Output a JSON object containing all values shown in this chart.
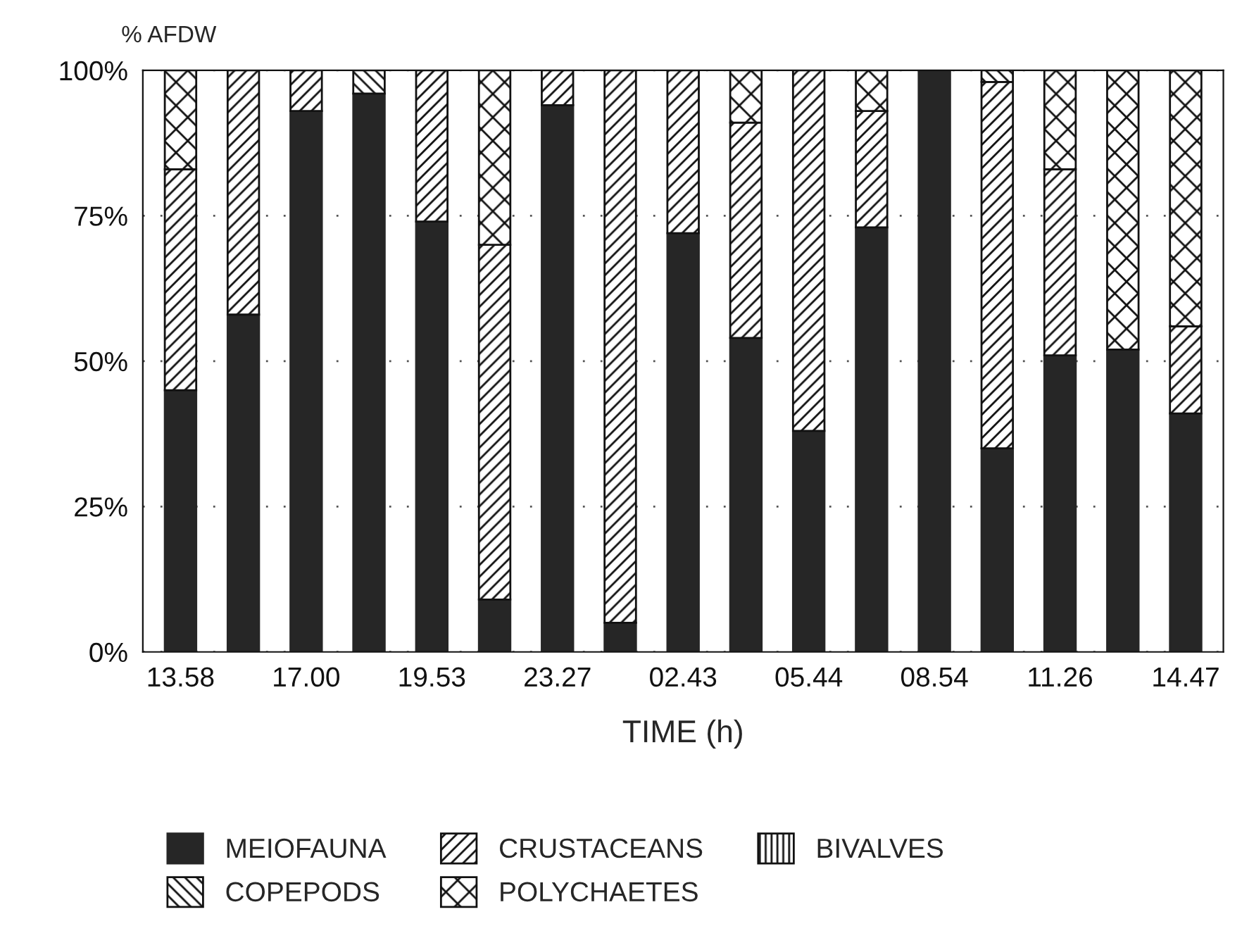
{
  "chart_data": {
    "type": "bar",
    "stacked": true,
    "ylabel": "% AFDW",
    "xlabel": "TIME (h)",
    "categories": [
      "13.58",
      null,
      "17.00",
      null,
      "19.53",
      null,
      "23.27",
      null,
      "02.43",
      null,
      "05.44",
      null,
      "08.54",
      null,
      "11.26",
      null,
      "14.47"
    ],
    "series": [
      {
        "name": "MEIOFAUNA",
        "color": "#262626",
        "values": [
          45,
          58,
          93,
          96,
          74,
          9,
          94,
          5,
          72,
          54,
          38,
          73,
          100,
          35,
          51,
          52,
          41
        ]
      },
      {
        "name": "CRUSTACEANS",
        "color": "#111111",
        "values": [
          38,
          42,
          7,
          null,
          26,
          61,
          6,
          95,
          28,
          37,
          62,
          20,
          null,
          63,
          32,
          null,
          15
        ]
      },
      {
        "name": "BIVALVES",
        "color": "#111111",
        "values": [
          null,
          null,
          null,
          null,
          null,
          null,
          null,
          null,
          null,
          null,
          null,
          null,
          null,
          null,
          null,
          null,
          null
        ]
      },
      {
        "name": "COPEPODS",
        "color": "#111111",
        "values": [
          null,
          null,
          null,
          4,
          null,
          null,
          null,
          null,
          null,
          null,
          null,
          null,
          null,
          2,
          null,
          null,
          null
        ]
      },
      {
        "name": "POLYCHAETES",
        "color": "#111111",
        "values": [
          17,
          null,
          null,
          null,
          null,
          30,
          null,
          null,
          null,
          9,
          null,
          7,
          null,
          null,
          17,
          48,
          44
        ]
      }
    ],
    "ylim": [
      0,
      100
    ],
    "yticks": [
      {
        "value": 0,
        "label": "0%"
      },
      {
        "value": 25,
        "label": "25%"
      },
      {
        "value": 50,
        "label": "50%"
      },
      {
        "value": 75,
        "label": "75%"
      },
      {
        "value": 100,
        "label": "100%"
      }
    ],
    "grid": "y",
    "legend": "bottom"
  }
}
